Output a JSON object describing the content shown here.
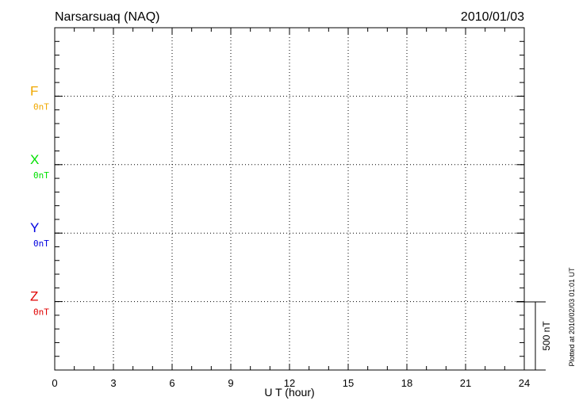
{
  "chart_data": {
    "type": "line",
    "title": "Narsarsuaq (NAQ)",
    "date": "2010/01/03",
    "xlabel": "U T (hour)",
    "xlim": [
      0,
      24
    ],
    "xticks": [
      "0",
      "3",
      "6",
      "9",
      "12",
      "15",
      "18",
      "21",
      "24"
    ],
    "grid": true,
    "series": [
      {
        "name": "F",
        "baseline_label": "0nT",
        "color": "#f0a800",
        "values": []
      },
      {
        "name": "X",
        "baseline_label": "0nT",
        "color": "#00e000",
        "values": []
      },
      {
        "name": "Y",
        "baseline_label": "0nT",
        "color": "#0000e0",
        "values": []
      },
      {
        "name": "Z",
        "baseline_label": "0nT",
        "color": "#e00000",
        "values": []
      }
    ],
    "scale_bar_label": "500 nT",
    "footer": "Plotted at 2010/02/03 01:01 UT"
  }
}
